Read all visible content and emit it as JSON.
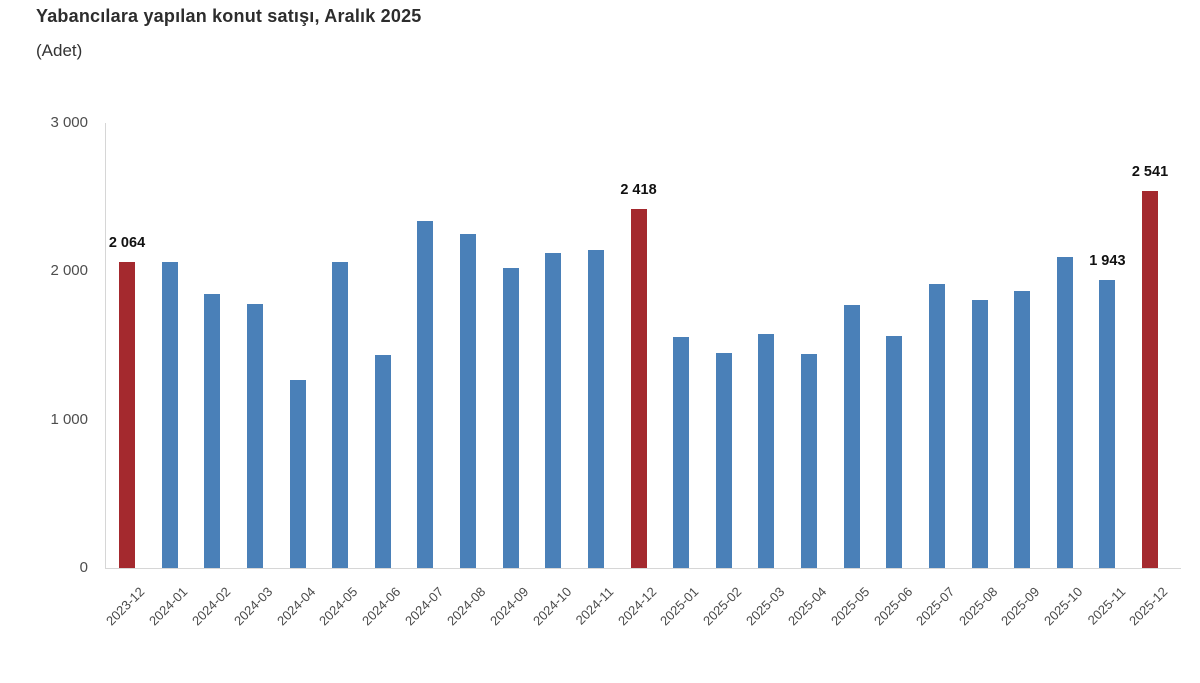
{
  "title": "Yabancılara yapılan konut satışı, Aralık 2025",
  "subtitle": "(Adet)",
  "chart_data": {
    "type": "bar",
    "categories": [
      "2023-12",
      "2024-01",
      "2024-02",
      "2024-03",
      "2024-04",
      "2024-05",
      "2024-06",
      "2024-07",
      "2024-08",
      "2024-09",
      "2024-10",
      "2024-11",
      "2024-12",
      "2025-01",
      "2025-02",
      "2025-03",
      "2025-04",
      "2025-05",
      "2025-06",
      "2025-07",
      "2025-08",
      "2025-09",
      "2025-10",
      "2025-11",
      "2025-12"
    ],
    "values": [
      2064,
      2061,
      1846,
      1777,
      1270,
      2064,
      1437,
      2342,
      2250,
      2022,
      2121,
      2147,
      2418,
      1556,
      1448,
      1576,
      1440,
      1773,
      1563,
      1915,
      1810,
      1867,
      2096,
      1943,
      2541
    ],
    "highlighted_indices": [
      0,
      12,
      24
    ],
    "annotations": [
      {
        "index": 0,
        "text": "2 064"
      },
      {
        "index": 12,
        "text": "2 418"
      },
      {
        "index": 23,
        "text": "1 943"
      },
      {
        "index": 24,
        "text": "2 541"
      }
    ],
    "y_axis": {
      "min": 0,
      "max": 3000,
      "ticks": [
        {
          "value": 0,
          "label": "0"
        },
        {
          "value": 1000,
          "label": "1 000"
        },
        {
          "value": 2000,
          "label": "2 000"
        },
        {
          "value": 3000,
          "label": "3 000"
        }
      ]
    },
    "colors": {
      "bar": "#4a80b8",
      "highlight": "#a4292e"
    },
    "grid": "off",
    "legend": "none",
    "title": "Yabancılara yapılan konut satışı, Aralık 2025",
    "ylabel": "(Adet)"
  }
}
